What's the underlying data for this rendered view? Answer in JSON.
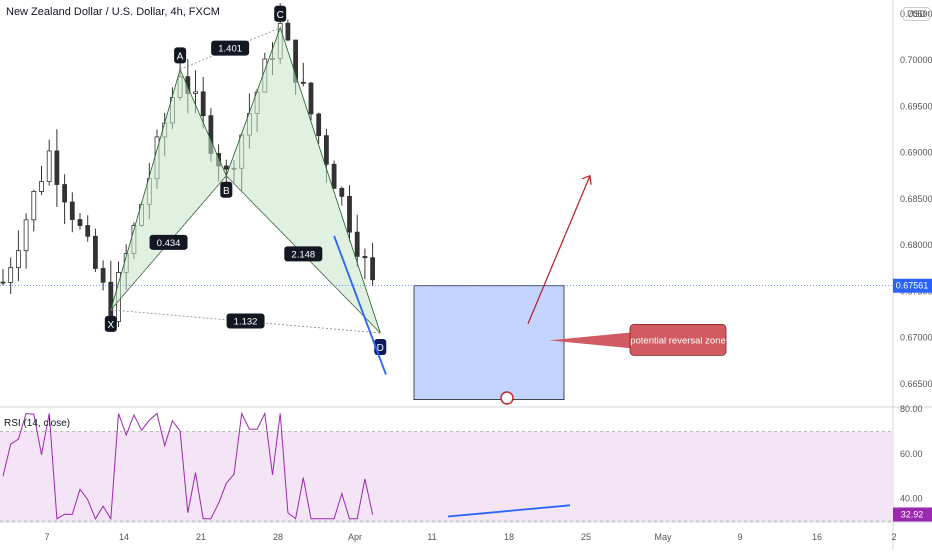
{
  "header": {
    "title": "New Zealand Dollar / U.S. Dollar, 4h, FXCM",
    "currency_badge": "USD"
  },
  "chart_data": [
    {
      "type": "candlestick",
      "title": "New Zealand Dollar / U.S. Dollar, 4h, FXCM",
      "ylim": [
        0.6625,
        0.7065
      ],
      "y_ticks": [
        "0.70500",
        "0.70000",
        "0.69500",
        "0.69000",
        "0.68500",
        "0.68000",
        "0.67500",
        "0.67000",
        "0.66500"
      ],
      "y_tick_values": [
        0.705,
        0.7,
        0.695,
        0.69,
        0.685,
        0.68,
        0.675,
        0.67,
        0.665
      ],
      "x_ticks": [
        "7",
        "14",
        "21",
        "28",
        "Apr",
        "11",
        "18",
        "25",
        "May",
        "9",
        "16",
        "2"
      ],
      "current_price": "0.67561",
      "current_price_value": 0.67561,
      "bullish_color": "#26a69a",
      "bearish_color": "#ef5350",
      "harmonic_pattern": {
        "points": [
          {
            "label": "X",
            "bar": 14,
            "price": 0.673
          },
          {
            "label": "A",
            "bar": 23,
            "price": 0.699
          },
          {
            "label": "B",
            "bar": 29,
            "price": 0.6875
          },
          {
            "label": "C",
            "bar": 36,
            "price": 0.7035
          },
          {
            "label": "D",
            "bar": 49,
            "price": 0.6705
          }
        ],
        "ratios": [
          {
            "text": "1.401",
            "from": "A",
            "to": "C"
          },
          {
            "text": "0.434",
            "from": "X",
            "to": "B"
          },
          {
            "text": "2.148",
            "from": "B",
            "to": "D"
          },
          {
            "text": "1.132",
            "from": "X",
            "to": "D"
          }
        ],
        "fill_color": "#c8e6c9"
      },
      "annotations": {
        "reversal_zone_label": "potential reversal zone",
        "reversal_zone_color": "#d05c62",
        "box_color": "#aec6ff",
        "projection_color": "#b71c1c",
        "trend_line_color": "#2962ff"
      }
    },
    {
      "type": "line",
      "title": "RSI (14, close)",
      "ylim": [
        30,
        80
      ],
      "y_ticks": [
        "80.00",
        "60.00",
        "40.00"
      ],
      "y_tick_values": [
        80,
        60,
        40
      ],
      "band": [
        30,
        70
      ],
      "current_value": "32.92",
      "current_value_num": 32.92,
      "line_color": "#9c27b0",
      "band_color": "#f3e5f5"
    }
  ]
}
